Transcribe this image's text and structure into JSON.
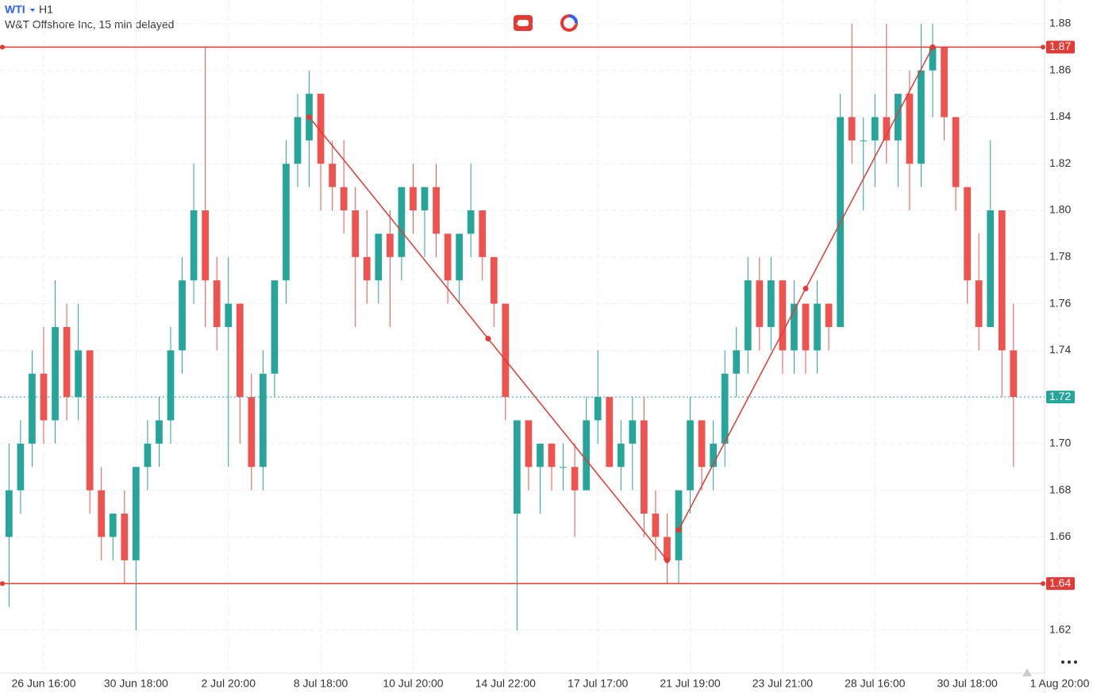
{
  "chart_data": {
    "type": "candlestick",
    "symbol": "WTI",
    "interval": "H1",
    "description": "W&T Offshore Inc, 15 min delayed",
    "categories": [
      null,
      null,
      null,
      "26 Jun 16:00",
      null,
      null,
      null,
      null,
      null,
      null,
      null,
      "30 Jun 18:00",
      null,
      null,
      null,
      null,
      null,
      null,
      null,
      "2 Jul 20:00",
      null,
      null,
      null,
      null,
      null,
      null,
      null,
      "8 Jul 18:00",
      null,
      null,
      null,
      null,
      null,
      null,
      null,
      "10 Jul 20:00",
      null,
      null,
      null,
      null,
      null,
      null,
      null,
      "14 Jul 22:00",
      null,
      null,
      null,
      null,
      null,
      null,
      null,
      "17 Jul 17:00",
      null,
      null,
      null,
      null,
      null,
      null,
      null,
      "21 Jul 19:00",
      null,
      null,
      null,
      null,
      null,
      null,
      null,
      "23 Jul 21:00",
      null,
      null,
      null,
      null,
      null,
      null,
      null,
      "28 Jul 16:00",
      null,
      null,
      null,
      null,
      null,
      null,
      null,
      "30 Jul 18:00",
      null,
      null,
      null,
      null,
      null,
      null,
      null,
      "1 Aug 20:00"
    ],
    "open": [
      1.66,
      1.68,
      1.7,
      1.73,
      1.71,
      1.75,
      1.72,
      1.74,
      1.68,
      1.66,
      1.67,
      1.65,
      1.69,
      1.7,
      1.71,
      1.74,
      1.77,
      1.8,
      1.77,
      1.75,
      1.76,
      1.72,
      1.69,
      1.73,
      1.77,
      1.82,
      1.83,
      1.85,
      1.82,
      1.81,
      1.8,
      1.78,
      1.77,
      1.79,
      1.78,
      1.81,
      1.8,
      1.81,
      1.79,
      1.77,
      1.79,
      1.8,
      1.78,
      1.76,
      1.67,
      1.71,
      1.69,
      1.7,
      1.69,
      1.69,
      1.68,
      1.71,
      1.72,
      1.69,
      1.7,
      1.71,
      1.67,
      1.66,
      1.65,
      1.68,
      1.71,
      1.69,
      1.7,
      1.73,
      1.74,
      1.77,
      1.75,
      1.77,
      1.74,
      1.76,
      1.74,
      1.76,
      1.75,
      1.84,
      1.83,
      1.83,
      1.84,
      1.83,
      1.85,
      1.82,
      1.86,
      1.87,
      1.84,
      1.81,
      1.77,
      1.75,
      1.8,
      1.74,
      null,
      null,
      null,
      null
    ],
    "high": [
      1.7,
      1.71,
      1.74,
      1.75,
      1.77,
      1.76,
      1.76,
      1.74,
      1.69,
      1.67,
      1.68,
      1.69,
      1.71,
      1.72,
      1.75,
      1.78,
      1.82,
      1.87,
      1.78,
      1.78,
      1.76,
      1.73,
      1.74,
      1.77,
      1.83,
      1.85,
      1.86,
      1.85,
      1.83,
      1.83,
      1.81,
      1.8,
      1.79,
      1.8,
      1.81,
      1.82,
      1.81,
      1.82,
      1.79,
      1.79,
      1.82,
      1.8,
      1.78,
      1.76,
      1.71,
      1.71,
      1.7,
      1.7,
      1.7,
      1.7,
      1.72,
      1.74,
      1.72,
      1.71,
      1.72,
      1.72,
      1.68,
      1.67,
      1.68,
      1.72,
      1.71,
      1.71,
      1.74,
      1.75,
      1.78,
      1.78,
      1.78,
      1.77,
      1.77,
      1.76,
      1.77,
      1.76,
      1.85,
      1.88,
      1.84,
      1.85,
      1.88,
      1.85,
      1.86,
      1.88,
      1.88,
      1.87,
      1.84,
      1.81,
      1.79,
      1.83,
      1.8,
      1.76,
      null,
      null,
      null,
      null
    ],
    "low": [
      1.63,
      1.67,
      1.69,
      1.7,
      1.7,
      1.71,
      1.71,
      1.67,
      1.65,
      1.65,
      1.64,
      1.62,
      1.68,
      1.69,
      1.7,
      1.73,
      1.76,
      1.75,
      1.74,
      1.69,
      1.7,
      1.68,
      1.68,
      1.72,
      1.76,
      1.81,
      1.81,
      1.8,
      1.8,
      1.79,
      1.75,
      1.76,
      1.76,
      1.75,
      1.77,
      1.79,
      1.78,
      1.78,
      1.76,
      1.76,
      1.78,
      1.77,
      1.75,
      1.71,
      1.62,
      1.68,
      1.67,
      1.68,
      1.68,
      1.66,
      1.68,
      1.7,
      1.69,
      1.68,
      1.68,
      1.66,
      1.65,
      1.64,
      1.64,
      1.67,
      1.68,
      1.68,
      1.69,
      1.72,
      1.73,
      1.74,
      1.74,
      1.73,
      1.73,
      1.73,
      1.73,
      1.74,
      1.75,
      1.82,
      1.8,
      1.81,
      1.82,
      1.81,
      1.8,
      1.81,
      1.84,
      1.83,
      1.8,
      1.76,
      1.74,
      1.75,
      1.72,
      1.69,
      null,
      null,
      null,
      null
    ],
    "close": [
      1.68,
      1.7,
      1.73,
      1.71,
      1.75,
      1.72,
      1.74,
      1.68,
      1.66,
      1.67,
      1.65,
      1.69,
      1.7,
      1.71,
      1.74,
      1.77,
      1.8,
      1.77,
      1.75,
      1.76,
      1.72,
      1.69,
      1.73,
      1.77,
      1.82,
      1.84,
      1.85,
      1.82,
      1.81,
      1.8,
      1.78,
      1.77,
      1.79,
      1.78,
      1.81,
      1.8,
      1.81,
      1.79,
      1.77,
      1.79,
      1.8,
      1.78,
      1.76,
      1.72,
      1.71,
      1.69,
      1.7,
      1.69,
      1.69,
      1.68,
      1.71,
      1.72,
      1.69,
      1.7,
      1.71,
      1.67,
      1.66,
      1.65,
      1.68,
      1.71,
      1.69,
      1.7,
      1.73,
      1.74,
      1.77,
      1.75,
      1.77,
      1.74,
      1.76,
      1.74,
      1.76,
      1.75,
      1.84,
      1.83,
      1.83,
      1.84,
      1.83,
      1.85,
      1.82,
      1.86,
      1.87,
      1.84,
      1.81,
      1.77,
      1.75,
      1.8,
      1.74,
      1.72,
      null,
      null,
      null,
      null
    ],
    "up_color": "#26a69a",
    "down_color": "#ef5350",
    "ylim": [
      1.6016,
      1.8902
    ],
    "yticks": [
      1.62,
      1.64,
      1.66,
      1.68,
      {
        "value": 1.7,
        "label": "1.70"
      },
      1.72,
      1.74,
      1.76,
      1.78,
      {
        "value": 1.8,
        "label": "1.80"
      },
      1.82,
      1.84,
      1.86,
      1.88
    ],
    "grid": true,
    "levels": [
      1.87,
      1.64
    ],
    "level_color": "#e53935",
    "last_price": 1.72,
    "trend_lines": [
      {
        "points": [
          [
            26.5,
            1.84
          ],
          [
            57.5,
            1.65
          ]
        ]
      },
      {
        "points": [
          [
            58.5,
            1.663
          ],
          [
            80.5,
            1.87
          ]
        ]
      }
    ]
  }
}
